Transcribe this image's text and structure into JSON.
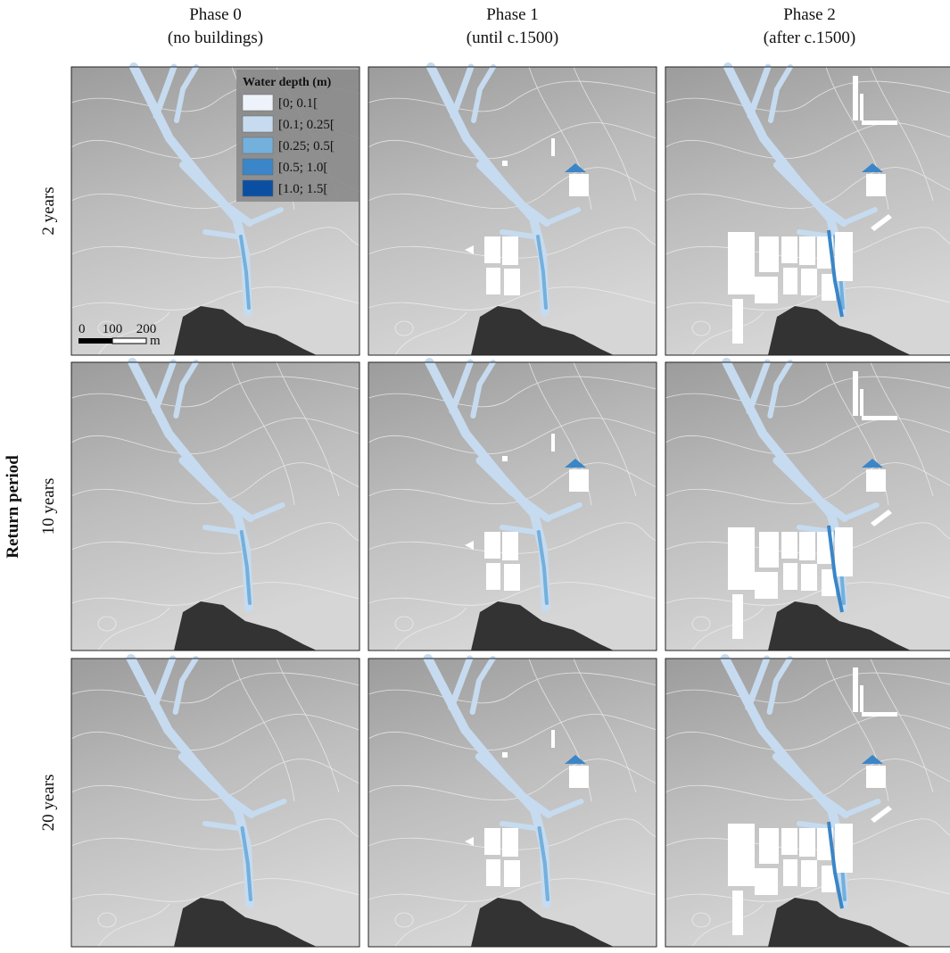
{
  "columns": [
    {
      "title": "Phase 0",
      "subtitle": "(no buildings)"
    },
    {
      "title": "Phase 1",
      "subtitle": "(until c.1500)"
    },
    {
      "title": "Phase 2",
      "subtitle": "(after c.1500)"
    }
  ],
  "rows": [
    "2 years",
    "10 years",
    "20 years"
  ],
  "row_axis_title": "Return period",
  "legend": {
    "title": "Water depth (m)",
    "items": [
      {
        "label": "[0; 0.1[",
        "color": "#eef2fa"
      },
      {
        "label": "[0.1; 0.25[",
        "color": "#c6dbef"
      },
      {
        "label": "[0.25; 0.5[",
        "color": "#74b0dc"
      },
      {
        "label": "[0.5; 1.0[",
        "color": "#3a86c8"
      },
      {
        "label": "[1.0; 1.5[",
        "color": "#0b4fa3"
      }
    ]
  },
  "scale_bar": {
    "labels": [
      "0",
      "100",
      "200"
    ],
    "unit": "m"
  }
}
